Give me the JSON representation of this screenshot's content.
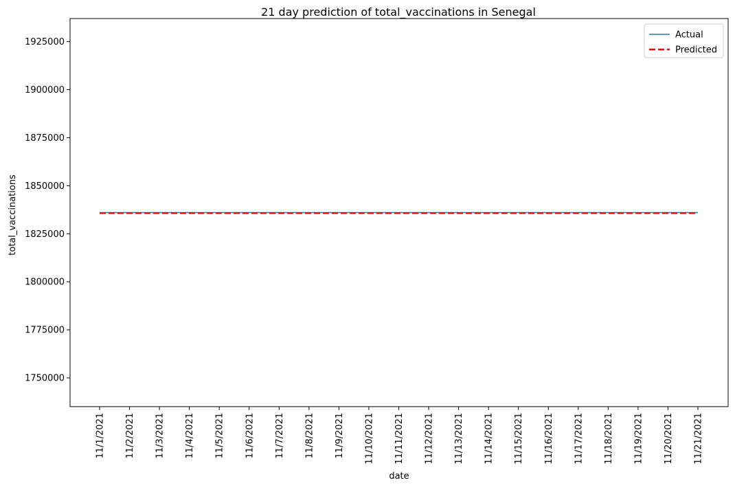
{
  "chart_data": {
    "type": "line",
    "title": "21 day prediction of total_vaccinations in Senegal",
    "xlabel": "date",
    "ylabel": "total_vaccinations",
    "x": [
      "11/1/2021",
      "11/2/2021",
      "11/3/2021",
      "11/4/2021",
      "11/5/2021",
      "11/6/2021",
      "11/7/2021",
      "11/8/2021",
      "11/9/2021",
      "11/10/2021",
      "11/11/2021",
      "11/12/2021",
      "11/13/2021",
      "11/14/2021",
      "11/15/2021",
      "11/16/2021",
      "11/17/2021",
      "11/18/2021",
      "11/19/2021",
      "11/20/2021",
      "11/21/2021"
    ],
    "yticks": [
      1750000,
      1775000,
      1800000,
      1825000,
      1850000,
      1875000,
      1900000,
      1925000
    ],
    "ylim": [
      1735000,
      1937000
    ],
    "grid": false,
    "legend_position": "top-right",
    "series": [
      {
        "name": "Actual",
        "color": "#1f77b4",
        "style": "solid",
        "values": [
          1836000,
          1836000,
          1836000,
          1836000,
          1836000,
          1836000,
          1836000,
          1836000,
          1836000,
          1836000,
          1836000,
          1836000,
          1836000,
          1836000,
          1836000,
          1836000,
          1836000,
          1836000,
          1836000,
          1836000,
          1836000
        ]
      },
      {
        "name": "Predicted",
        "color": "#ff0000",
        "style": "dashed",
        "values": [
          1835700,
          1835700,
          1835700,
          1835700,
          1835700,
          1835700,
          1835700,
          1835700,
          1835700,
          1835700,
          1835700,
          1835700,
          1835700,
          1835700,
          1835700,
          1835700,
          1835700,
          1835700,
          1835700,
          1835700,
          1835700
        ]
      }
    ]
  }
}
